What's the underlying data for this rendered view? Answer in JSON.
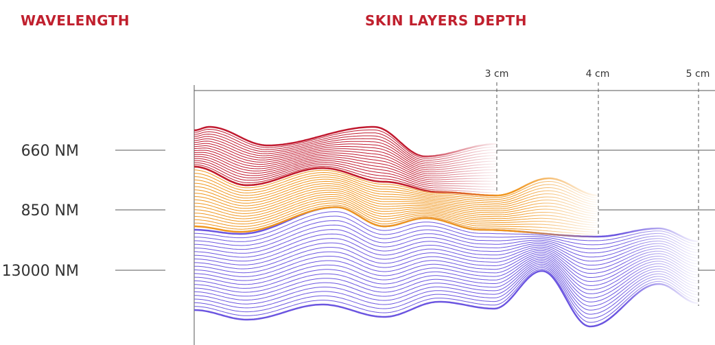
{
  "header": {
    "left_title": "WAVELENGTH",
    "right_title": "SKIN LAYERS DEPTH"
  },
  "depth_markers": [
    "3 cm",
    "4 cm",
    "5 cm"
  ],
  "wavelengths": [
    "660 NM",
    "850 NM",
    "13000 NM"
  ]
}
